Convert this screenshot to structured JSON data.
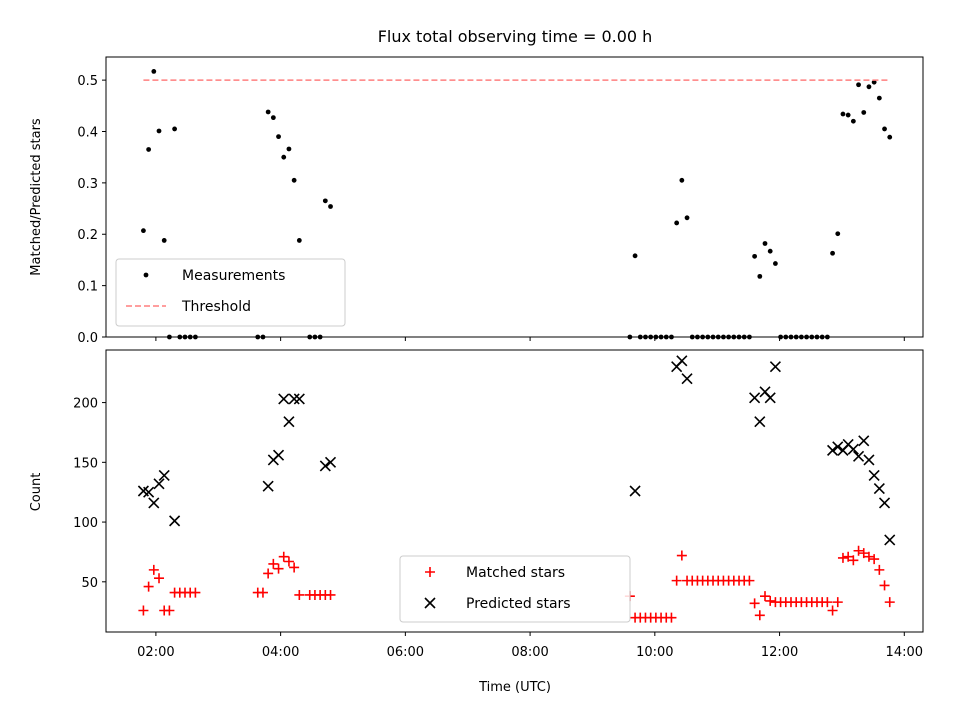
{
  "chart_data": [
    {
      "type": "scatter",
      "title": "Flux total observing time = 0.00 h",
      "xlabel": "",
      "ylabel": "Matched/Predicted stars",
      "xlim": [
        "01:12",
        "14:18"
      ],
      "ylim": [
        0,
        0.545
      ],
      "yticks": [
        0.0,
        0.1,
        0.2,
        0.3,
        0.4,
        0.5
      ],
      "ytick_labels": [
        "0.0",
        "0.1",
        "0.2",
        "0.3",
        "0.4",
        "0.5"
      ],
      "legend_position": "lower-left",
      "series": [
        {
          "name": "Measurements",
          "kind": "scatter",
          "marker": "dot",
          "color": "#000000",
          "points": [
            [
              "01:48",
              0.207
            ],
            [
              "01:53",
              0.365
            ],
            [
              "01:58",
              0.517
            ],
            [
              "02:03",
              0.401
            ],
            [
              "02:08",
              0.188
            ],
            [
              "02:13",
              0.0
            ],
            [
              "02:18",
              0.405
            ],
            [
              "02:23",
              0.0
            ],
            [
              "02:28",
              0.0
            ],
            [
              "02:33",
              0.0
            ],
            [
              "02:38",
              0.0
            ],
            [
              "03:38",
              0.0
            ],
            [
              "03:43",
              0.0
            ],
            [
              "03:48",
              0.438
            ],
            [
              "03:53",
              0.427
            ],
            [
              "03:58",
              0.39
            ],
            [
              "04:03",
              0.35
            ],
            [
              "04:08",
              0.366
            ],
            [
              "04:13",
              0.305
            ],
            [
              "04:18",
              0.188
            ],
            [
              "04:28",
              0.0
            ],
            [
              "04:33",
              0.0
            ],
            [
              "04:38",
              0.0
            ],
            [
              "04:43",
              0.265
            ],
            [
              "04:48",
              0.254
            ],
            [
              "09:36",
              0.0
            ],
            [
              "09:41",
              0.158
            ],
            [
              "09:46",
              0.0
            ],
            [
              "09:51",
              0.0
            ],
            [
              "09:56",
              0.0
            ],
            [
              "10:01",
              0.0
            ],
            [
              "10:06",
              0.0
            ],
            [
              "10:11",
              0.0
            ],
            [
              "10:16",
              0.0
            ],
            [
              "10:21",
              0.222
            ],
            [
              "10:26",
              0.305
            ],
            [
              "10:31",
              0.232
            ],
            [
              "10:36",
              0.0
            ],
            [
              "10:41",
              0.0
            ],
            [
              "10:46",
              0.0
            ],
            [
              "10:51",
              0.0
            ],
            [
              "10:56",
              0.0
            ],
            [
              "11:01",
              0.0
            ],
            [
              "11:06",
              0.0
            ],
            [
              "11:11",
              0.0
            ],
            [
              "11:16",
              0.0
            ],
            [
              "11:21",
              0.0
            ],
            [
              "11:26",
              0.0
            ],
            [
              "11:31",
              0.0
            ],
            [
              "11:36",
              0.157
            ],
            [
              "11:41",
              0.118
            ],
            [
              "11:46",
              0.182
            ],
            [
              "11:51",
              0.167
            ],
            [
              "11:56",
              0.143
            ],
            [
              "12:01",
              0.0
            ],
            [
              "12:06",
              0.0
            ],
            [
              "12:11",
              0.0
            ],
            [
              "12:16",
              0.0
            ],
            [
              "12:21",
              0.0
            ],
            [
              "12:26",
              0.0
            ],
            [
              "12:31",
              0.0
            ],
            [
              "12:36",
              0.0
            ],
            [
              "12:41",
              0.0
            ],
            [
              "12:46",
              0.0
            ],
            [
              "12:51",
              0.163
            ],
            [
              "12:56",
              0.201
            ],
            [
              "13:01",
              0.434
            ],
            [
              "13:06",
              0.432
            ],
            [
              "13:11",
              0.42
            ],
            [
              "13:16",
              0.491
            ],
            [
              "13:21",
              0.437
            ],
            [
              "13:26",
              0.487
            ],
            [
              "13:31",
              0.496
            ],
            [
              "13:36",
              0.465
            ],
            [
              "13:41",
              0.405
            ],
            [
              "13:46",
              0.389
            ]
          ]
        },
        {
          "name": "Threshold",
          "kind": "line",
          "dash": "dashed",
          "color": "#ff7f7f",
          "points": [
            [
              "01:48",
              0.5
            ],
            [
              "13:46",
              0.5
            ]
          ]
        }
      ]
    },
    {
      "type": "scatter",
      "title": "",
      "xlabel": "Time (UTC)",
      "ylabel": "Count",
      "xlim": [
        "01:12",
        "14:18"
      ],
      "ylim": [
        8,
        244
      ],
      "yticks": [
        50,
        100,
        150,
        200
      ],
      "ytick_labels": [
        "50",
        "100",
        "150",
        "200"
      ],
      "xticks": [
        "02:00",
        "04:00",
        "06:00",
        "08:00",
        "10:00",
        "12:00",
        "14:00"
      ],
      "xtick_labels": [
        "02:00",
        "04:00",
        "06:00",
        "08:00",
        "10:00",
        "12:00",
        "14:00"
      ],
      "legend_position": "lower-center",
      "series": [
        {
          "name": "Matched stars",
          "kind": "scatter",
          "marker": "plus",
          "color": "#ff0000",
          "points": [
            [
              "01:48",
              26
            ],
            [
              "01:53",
              46
            ],
            [
              "01:58",
              60
            ],
            [
              "02:03",
              53
            ],
            [
              "02:08",
              26
            ],
            [
              "02:13",
              26
            ],
            [
              "02:18",
              41
            ],
            [
              "02:23",
              41
            ],
            [
              "02:28",
              41
            ],
            [
              "02:33",
              41
            ],
            [
              "02:38",
              41
            ],
            [
              "03:38",
              41
            ],
            [
              "03:43",
              41
            ],
            [
              "03:48",
              57
            ],
            [
              "03:53",
              65
            ],
            [
              "03:58",
              61
            ],
            [
              "04:03",
              71
            ],
            [
              "04:08",
              67
            ],
            [
              "04:13",
              62
            ],
            [
              "04:18",
              39
            ],
            [
              "04:28",
              39
            ],
            [
              "04:33",
              39
            ],
            [
              "04:38",
              39
            ],
            [
              "04:43",
              39
            ],
            [
              "04:48",
              39
            ],
            [
              "09:36",
              38
            ],
            [
              "09:41",
              20
            ],
            [
              "09:46",
              20
            ],
            [
              "09:51",
              20
            ],
            [
              "09:56",
              20
            ],
            [
              "10:01",
              20
            ],
            [
              "10:06",
              20
            ],
            [
              "10:11",
              20
            ],
            [
              "10:16",
              20
            ],
            [
              "10:21",
              51
            ],
            [
              "10:26",
              72
            ],
            [
              "10:31",
              51
            ],
            [
              "10:36",
              51
            ],
            [
              "10:41",
              51
            ],
            [
              "10:46",
              51
            ],
            [
              "10:51",
              51
            ],
            [
              "10:56",
              51
            ],
            [
              "11:01",
              51
            ],
            [
              "11:06",
              51
            ],
            [
              "11:11",
              51
            ],
            [
              "11:16",
              51
            ],
            [
              "11:21",
              51
            ],
            [
              "11:26",
              51
            ],
            [
              "11:31",
              51
            ],
            [
              "11:36",
              32
            ],
            [
              "11:41",
              22
            ],
            [
              "11:46",
              38
            ],
            [
              "11:51",
              34
            ],
            [
              "11:56",
              33
            ],
            [
              "12:01",
              33
            ],
            [
              "12:06",
              33
            ],
            [
              "12:11",
              33
            ],
            [
              "12:16",
              33
            ],
            [
              "12:21",
              33
            ],
            [
              "12:26",
              33
            ],
            [
              "12:31",
              33
            ],
            [
              "12:36",
              33
            ],
            [
              "12:41",
              33
            ],
            [
              "12:46",
              33
            ],
            [
              "12:51",
              26
            ],
            [
              "12:56",
              33
            ],
            [
              "13:01",
              70
            ],
            [
              "13:06",
              71
            ],
            [
              "13:11",
              68
            ],
            [
              "13:16",
              76
            ],
            [
              "13:21",
              74
            ],
            [
              "13:26",
              71
            ],
            [
              "13:31",
              69
            ],
            [
              "13:36",
              60
            ],
            [
              "13:41",
              47
            ],
            [
              "13:46",
              33
            ]
          ]
        },
        {
          "name": "Predicted stars",
          "kind": "scatter",
          "marker": "x",
          "color": "#000000",
          "points": [
            [
              "01:48",
              126
            ],
            [
              "01:53",
              125
            ],
            [
              "01:58",
              116
            ],
            [
              "02:03",
              132
            ],
            [
              "02:08",
              139
            ],
            [
              "02:18",
              101
            ],
            [
              "03:48",
              130
            ],
            [
              "03:53",
              152
            ],
            [
              "03:58",
              156
            ],
            [
              "04:03",
              203
            ],
            [
              "04:08",
              184
            ],
            [
              "04:13",
              203
            ],
            [
              "04:18",
              203
            ],
            [
              "04:43",
              147
            ],
            [
              "04:48",
              150
            ],
            [
              "09:41",
              126
            ],
            [
              "10:21",
              230
            ],
            [
              "10:26",
              235
            ],
            [
              "10:31",
              220
            ],
            [
              "11:36",
              204
            ],
            [
              "11:41",
              184
            ],
            [
              "11:46",
              209
            ],
            [
              "11:51",
              204
            ],
            [
              "11:56",
              230
            ],
            [
              "12:51",
              160
            ],
            [
              "12:56",
              163
            ],
            [
              "13:01",
              160
            ],
            [
              "13:06",
              165
            ],
            [
              "13:11",
              161
            ],
            [
              "13:16",
              155
            ],
            [
              "13:21",
              168
            ],
            [
              "13:26",
              152
            ],
            [
              "13:31",
              139
            ],
            [
              "13:36",
              128
            ],
            [
              "13:41",
              116
            ],
            [
              "13:46",
              85
            ]
          ]
        }
      ]
    }
  ]
}
